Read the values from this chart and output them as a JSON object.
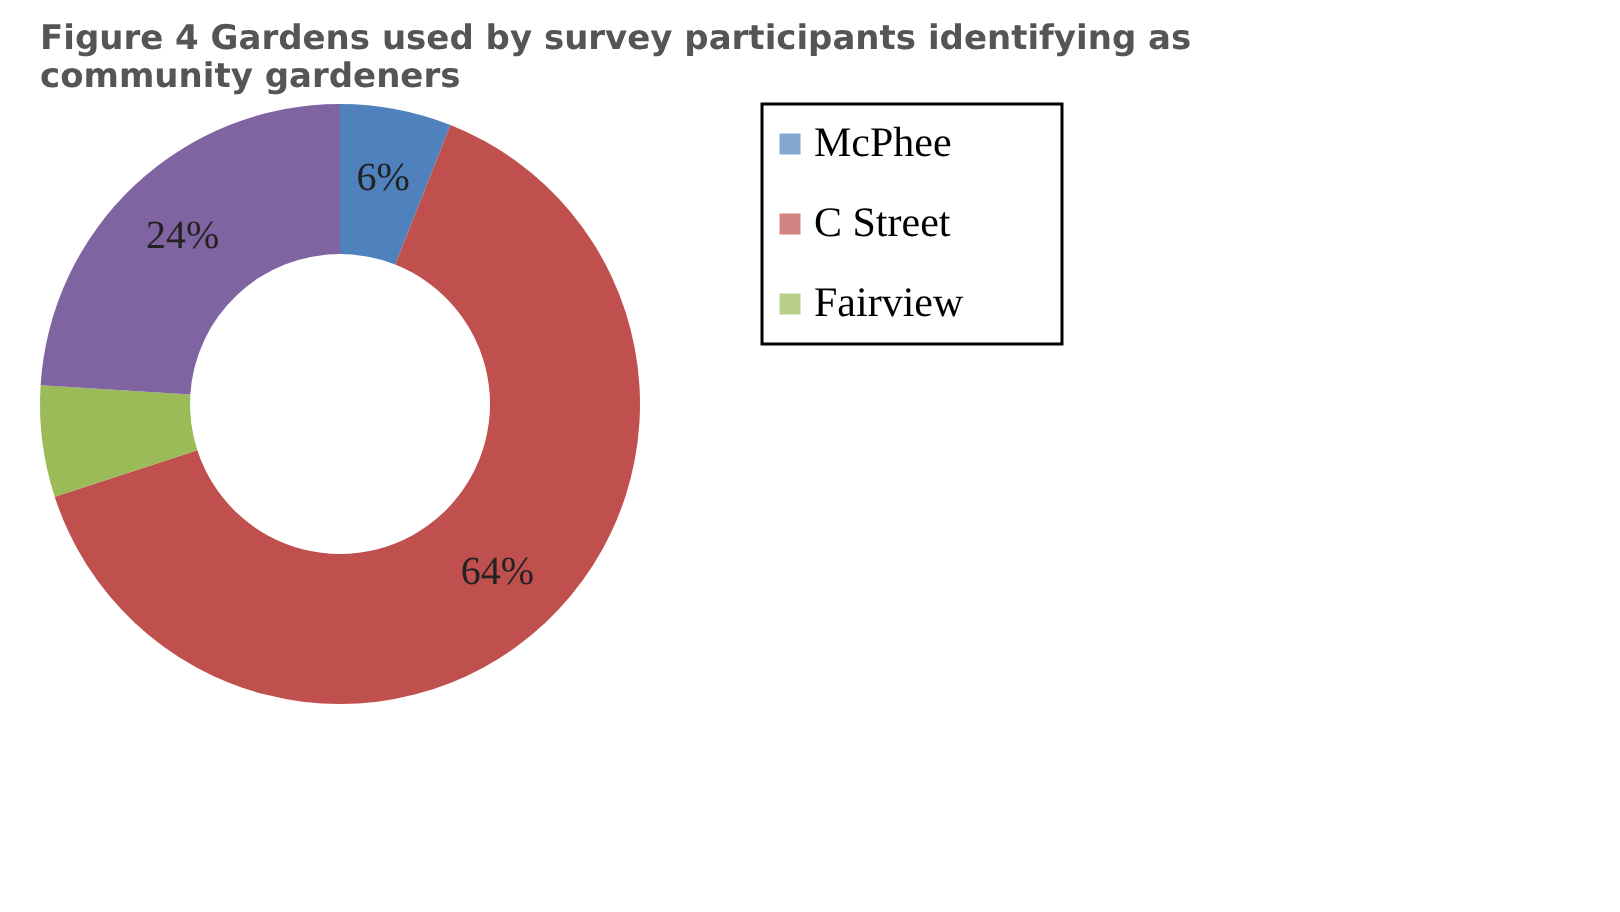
{
  "chart_data": {
    "type": "donut",
    "title": "Figure 4 Gardens used by survey participants identifying as community gardeners",
    "categories": [
      "McPhee",
      "C Street",
      "Fairview",
      null
    ],
    "values": [
      6,
      64,
      6,
      24
    ],
    "colors": [
      "#4f81bd",
      "#c0504d",
      "#9bbb59",
      "#8064a2"
    ],
    "value_labels": [
      "6%",
      "64%",
      null,
      "24%"
    ],
    "legend": "right"
  }
}
